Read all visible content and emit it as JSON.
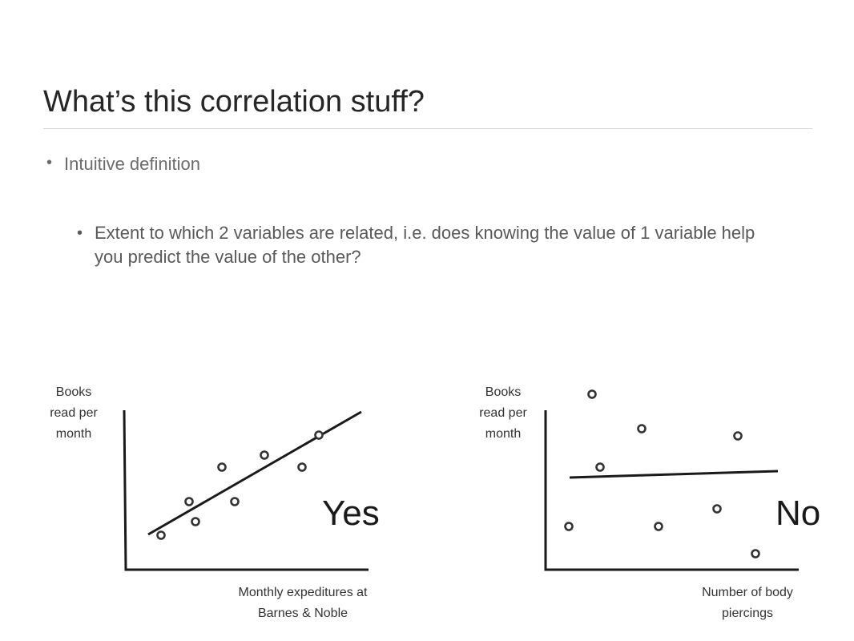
{
  "slide": {
    "title": "What’s this correlation stuff?",
    "bullet_marker": "•",
    "bullets": [
      "Intuitive definition",
      "Extent to which 2 variables are related, i.e. does knowing the value of 1 variable help you predict the value of the other?"
    ]
  },
  "diagrams": {
    "left": {
      "ylabel_lines": [
        "Books",
        "read per",
        "month"
      ],
      "xlabel_lines": [
        "Monthly expeditures at",
        "Barnes & Noble"
      ],
      "verdict": "Yes"
    },
    "right": {
      "ylabel_lines": [
        "Books",
        "read per",
        "month"
      ],
      "xlabel_lines": [
        "Number of body",
        "piercings"
      ],
      "verdict": "No"
    }
  },
  "colors": {
    "title": "#262626",
    "text": "#595959",
    "lines": "#1a1a1a",
    "rule": "#d9d9d9"
  }
}
